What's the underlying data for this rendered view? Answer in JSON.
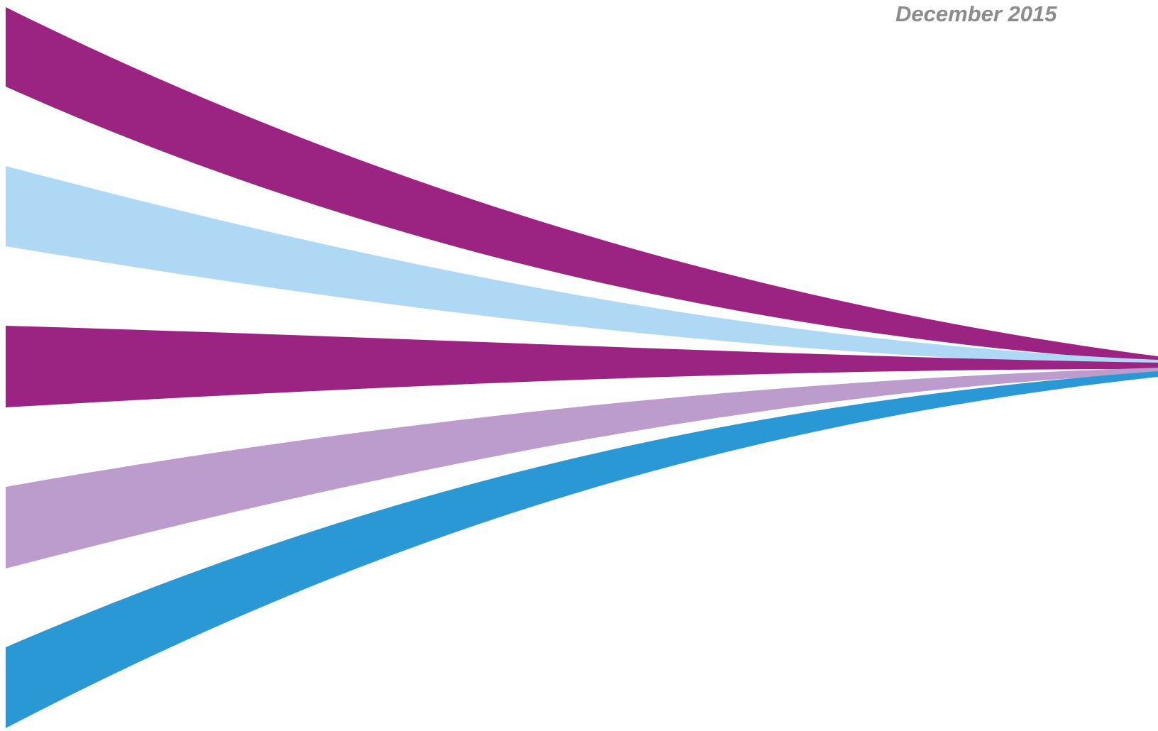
{
  "cover": {
    "date": "December 2015"
  },
  "graphic": {
    "name": "converging-ribbons",
    "ribbon_colors": [
      "#9b2482",
      "#aed8f3",
      "#9b2482",
      "#bb9ccd",
      "#2b98d6"
    ]
  }
}
